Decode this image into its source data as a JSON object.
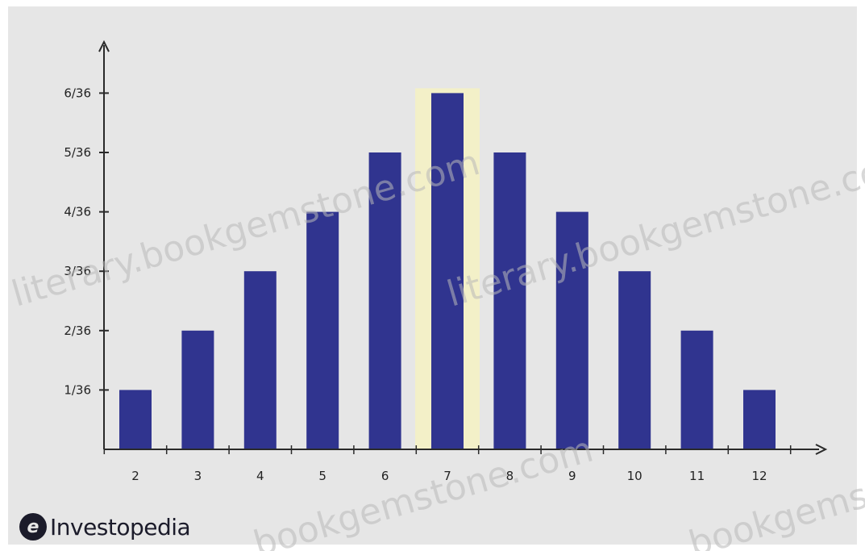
{
  "chart_data": {
    "type": "bar",
    "title": "",
    "xlabel": "",
    "ylabel": "",
    "categories": [
      "2",
      "3",
      "4",
      "5",
      "6",
      "7",
      "8",
      "9",
      "10",
      "11",
      "12"
    ],
    "values": [
      1,
      2,
      3,
      4,
      5,
      6,
      5,
      4,
      3,
      2,
      1
    ],
    "value_denominator": 36,
    "y_ticks": [
      "1/36",
      "2/36",
      "3/36",
      "4/36",
      "5/36",
      "6/36"
    ],
    "y_tick_values": [
      1,
      2,
      3,
      4,
      5,
      6
    ],
    "ylim": [
      0,
      6
    ],
    "grid": false,
    "bar_color": "#30348f",
    "highlight_category": "7",
    "highlight_color": "#f3f0c8"
  },
  "branding": {
    "logo_text": "Investopedia",
    "logo_mark": "e"
  },
  "watermarks": [
    "literary.bookgemstone.com",
    "literary.bookgemstone.com",
    "bookgemstone.com",
    "bookgemstone.com"
  ],
  "colors": {
    "background": "#e6e6e6",
    "axis": "#2a2a2a",
    "text": "#222222"
  }
}
